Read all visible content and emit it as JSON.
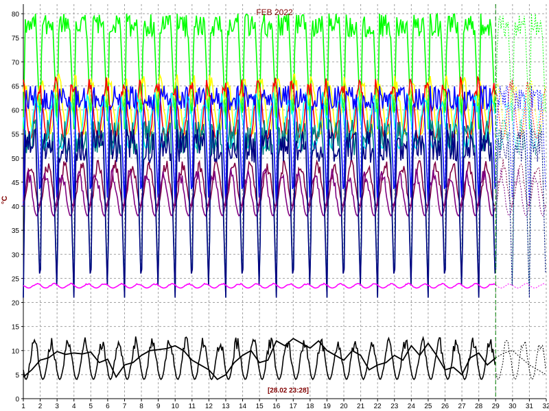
{
  "chart_data": {
    "type": "line",
    "title": "FEB 2022",
    "ylabel": "°C",
    "timestamp": "[28.02 23:28]",
    "xlim": [
      1,
      32
    ],
    "ylim": [
      0,
      82
    ],
    "x_ticks": [
      1,
      2,
      3,
      4,
      5,
      6,
      7,
      8,
      9,
      10,
      11,
      12,
      13,
      14,
      15,
      16,
      17,
      18,
      19,
      20,
      21,
      22,
      23,
      24,
      25,
      26,
      27,
      28,
      29,
      30,
      31,
      32
    ],
    "y_ticks": [
      0,
      5,
      10,
      15,
      20,
      25,
      30,
      35,
      40,
      45,
      50,
      55,
      60,
      65,
      70,
      75,
      80
    ],
    "grid": true,
    "current_time_marker": 29,
    "forecast_after": 29,
    "colors": {
      "background": "#ffffff",
      "grid": "#a0a0a0",
      "marker": "#008000",
      "title": "#800000"
    },
    "series": [
      {
        "color": "#00ff00",
        "low": 56,
        "high": 80
      },
      {
        "color": "#ffff00",
        "low": 55,
        "high": 68
      },
      {
        "color": "#ff0000",
        "low": 54,
        "high": 67
      },
      {
        "color": "#00ffff",
        "low": 52,
        "high": 64
      },
      {
        "color": "#0000ff",
        "low": 40,
        "high": 65
      },
      {
        "color": "#800040",
        "low": 40,
        "high": 50
      },
      {
        "color": "#800080",
        "low": 38,
        "high": 48
      },
      {
        "color": "#008080",
        "low": 21,
        "high": 58
      },
      {
        "color": "#000080",
        "low": 21,
        "high": 56
      },
      {
        "color": "#ff00ff",
        "low": 23,
        "high": 24
      },
      {
        "color": "#000000",
        "low": 4,
        "high": 13
      }
    ],
    "black_series_points": [
      [
        1,
        4.5
      ],
      [
        1.5,
        6
      ],
      [
        2,
        8
      ],
      [
        2.5,
        8.5
      ],
      [
        3,
        9.8
      ],
      [
        3.5,
        9.2
      ],
      [
        4,
        9.5
      ],
      [
        4.5,
        9.3
      ],
      [
        5,
        9.7
      ],
      [
        5.5,
        7.5
      ],
      [
        6,
        8.2
      ],
      [
        6.5,
        4.5
      ],
      [
        7,
        7
      ],
      [
        7.5,
        7.5
      ],
      [
        8,
        9
      ],
      [
        8.5,
        10
      ],
      [
        9,
        10.2
      ],
      [
        9.5,
        10.4
      ],
      [
        10,
        11
      ],
      [
        10.5,
        10
      ],
      [
        11,
        8
      ],
      [
        11.5,
        7
      ],
      [
        12,
        6
      ],
      [
        12.5,
        4
      ],
      [
        13,
        5
      ],
      [
        13.5,
        7.5
      ],
      [
        14,
        9
      ],
      [
        14.5,
        10
      ],
      [
        15,
        7.5
      ],
      [
        15.5,
        8
      ],
      [
        16,
        12
      ],
      [
        16.5,
        11
      ],
      [
        17,
        12.5
      ],
      [
        17.5,
        11.5
      ],
      [
        18,
        10.5
      ],
      [
        18.5,
        12
      ],
      [
        19,
        10
      ],
      [
        19.5,
        9
      ],
      [
        20,
        8
      ],
      [
        20.5,
        10
      ],
      [
        21,
        9
      ],
      [
        21.5,
        6
      ],
      [
        22,
        7
      ],
      [
        22.5,
        7.5
      ],
      [
        23,
        9
      ],
      [
        23.5,
        8
      ],
      [
        24,
        11
      ],
      [
        24.5,
        9
      ],
      [
        25,
        11.5
      ],
      [
        25.5,
        9
      ],
      [
        26,
        6
      ],
      [
        26.5,
        6.5
      ],
      [
        27,
        5
      ],
      [
        27.5,
        8.5
      ],
      [
        28,
        9.5
      ],
      [
        28.5,
        7
      ],
      [
        29,
        8.5
      ],
      [
        29.5,
        9.5
      ],
      [
        30,
        10
      ],
      [
        30.5,
        8.5
      ],
      [
        31,
        7
      ],
      [
        31.5,
        6
      ],
      [
        32,
        5
      ]
    ]
  }
}
